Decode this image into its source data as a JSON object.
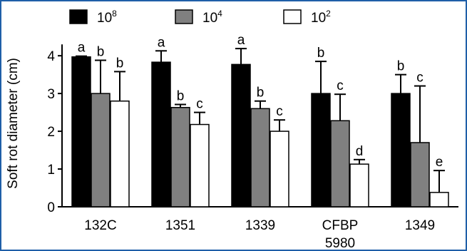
{
  "chart_data": {
    "type": "bar",
    "title": "",
    "xlabel": "",
    "ylabel": "Soft rot diameter (cm)",
    "ylim": [
      0,
      4.4
    ],
    "yticks": [
      "0",
      "1",
      "2",
      "3",
      "4"
    ],
    "categories": [
      {
        "label_lines": [
          "132C"
        ]
      },
      {
        "label_lines": [
          "1351"
        ]
      },
      {
        "label_lines": [
          "1339"
        ]
      },
      {
        "label_lines": [
          "CFBP",
          "5980"
        ]
      },
      {
        "label_lines": [
          "1349"
        ]
      }
    ],
    "legend_position": "top",
    "series": [
      {
        "name_base": "10",
        "name_exp": "8",
        "color": "#000000",
        "values": [
          3.97,
          3.83,
          3.77,
          3.0,
          3.0
        ],
        "errors": [
          0.02,
          0.3,
          0.42,
          0.85,
          0.5
        ],
        "letters": [
          "a",
          "a",
          "a",
          "b",
          "b"
        ]
      },
      {
        "name_base": "10",
        "name_exp": "4",
        "color": "#808080",
        "values": [
          3.0,
          2.63,
          2.6,
          2.28,
          1.7
        ],
        "errors": [
          0.88,
          0.08,
          0.2,
          0.7,
          1.5
        ],
        "letters": [
          "b",
          "b",
          "b",
          "c",
          "c"
        ]
      },
      {
        "name_base": "10",
        "name_exp": "2",
        "color": "#ffffff",
        "values": [
          2.8,
          2.18,
          2.0,
          1.13,
          0.38
        ],
        "errors": [
          0.78,
          0.32,
          0.3,
          0.12,
          0.58
        ],
        "letters": [
          "b",
          "c",
          "c",
          "d",
          "e"
        ]
      }
    ]
  }
}
